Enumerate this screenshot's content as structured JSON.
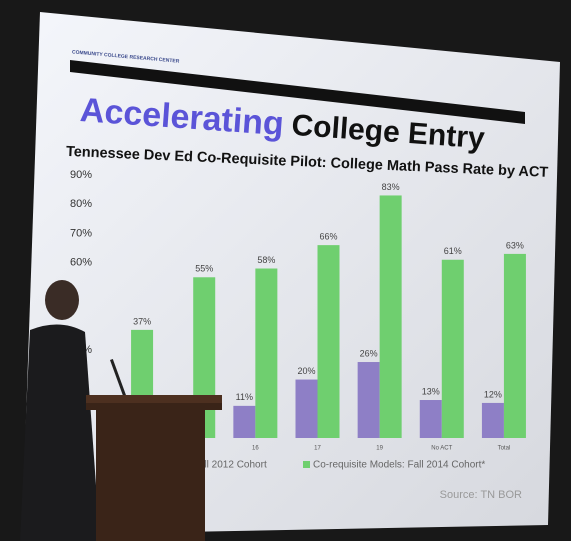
{
  "slide": {
    "org": "COMMUNITY COLLEGE RESEARCH CENTER",
    "title_accent": "Accelerating",
    "title_rest": "College Entry"
  },
  "chart_data": {
    "type": "bar",
    "title": "Tennessee Dev Ed Co-Requisite Pilot: College Math Pass Rate by ACT",
    "categories": [
      null,
      null,
      "16",
      "17",
      "19",
      "No ACT",
      "Total"
    ],
    "series": [
      {
        "name": "Model: Fall 2012 Cohort",
        "color": "#8e7fc6",
        "values": [
          null,
          null,
          11,
          20,
          26,
          13,
          12
        ],
        "value_labels": [
          null,
          null,
          "11%",
          "20%",
          "26%",
          "13%",
          "12%"
        ]
      },
      {
        "name": "Co-requisite Models: Fall 2014 Cohort*",
        "color": "#6fcf6f",
        "values": [
          37,
          55,
          58,
          66,
          83,
          61,
          63
        ],
        "value_labels": [
          "37%",
          "55%",
          "58%",
          "66%",
          "83%",
          "61%",
          "63%"
        ]
      }
    ],
    "ylim": [
      0,
      90
    ],
    "yticks": [
      {
        "value": 30,
        "label": "30%"
      },
      {
        "value": 60,
        "label": "60%"
      },
      {
        "value": 70,
        "label": "70%"
      },
      {
        "value": 80,
        "label": "80%"
      },
      {
        "value": 90,
        "label": "90%"
      }
    ],
    "legend": "bottom",
    "source": "Source: TN BOR"
  }
}
